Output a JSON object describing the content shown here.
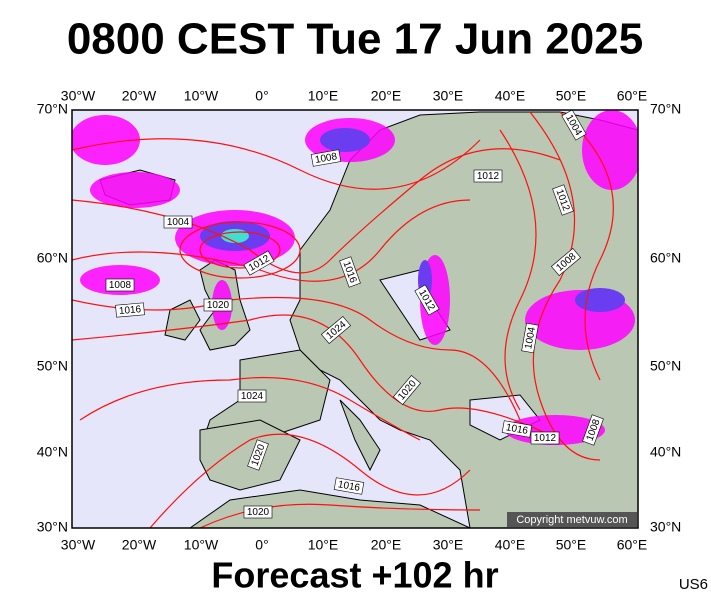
{
  "title": "0800 CEST Tue 17 Jun 2025",
  "footer": "Forecast +102 hr",
  "model": "US6",
  "copyright": "Copyright metvuw.com",
  "lon_labels": [
    "30°W",
    "20°W",
    "10°W",
    "0°",
    "10°E",
    "20°E",
    "30°E",
    "40°E",
    "50°E",
    "60°E"
  ],
  "lat_labels": [
    "70°N",
    "60°N",
    "50°N",
    "40°N",
    "30°N"
  ],
  "isobar_labels": [
    "1004",
    "1008",
    "1012",
    "1012",
    "1004",
    "1012",
    "1016",
    "1008",
    "1008",
    "1016",
    "1020",
    "1012",
    "1024",
    "1004",
    "1020",
    "1024",
    "1016",
    "1012",
    "1008",
    "1020",
    "1016",
    "1020"
  ]
}
